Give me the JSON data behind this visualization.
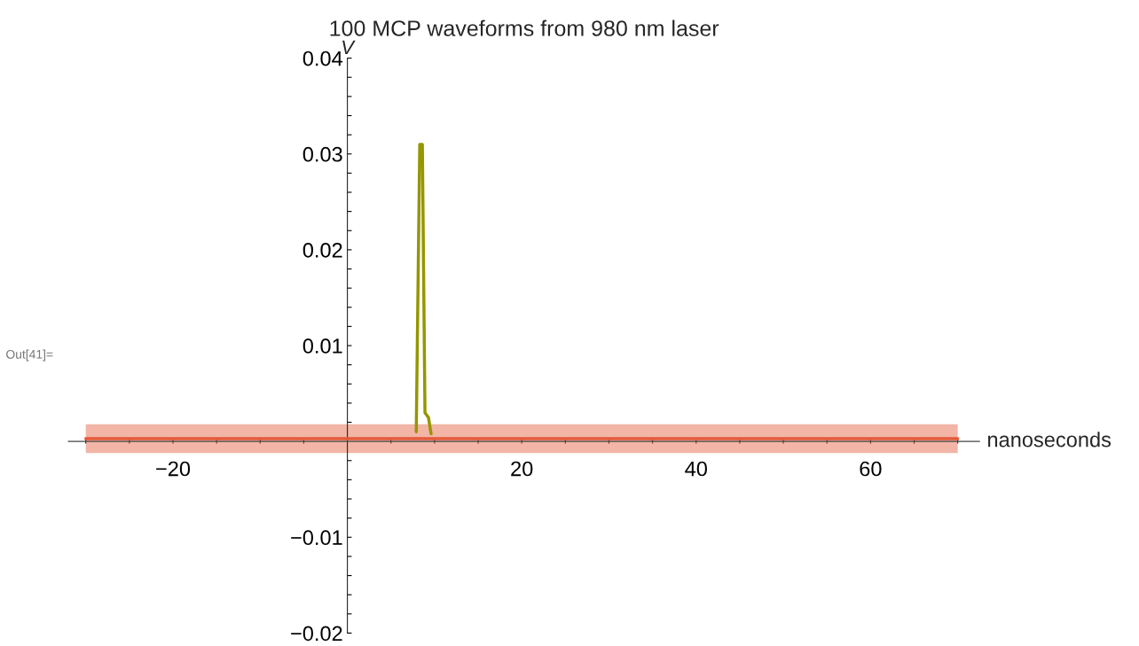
{
  "chart_data": {
    "type": "line",
    "title": "100 MCP waveforms from 980 nm laser",
    "xlabel": "nanoseconds",
    "ylabel": "V",
    "annotations": [
      "Out[41]="
    ],
    "xlim": [
      -32,
      72.5
    ],
    "ylim": [
      -0.02,
      0.04
    ],
    "xticks": [
      {
        "value": -30,
        "label": null
      },
      {
        "value": -25,
        "label": null
      },
      {
        "value": -20,
        "label": "−20"
      },
      {
        "value": -15,
        "label": null
      },
      {
        "value": -10,
        "label": null
      },
      {
        "value": -5,
        "label": null
      },
      {
        "value": 5,
        "label": null
      },
      {
        "value": 10,
        "label": null
      },
      {
        "value": 15,
        "label": null
      },
      {
        "value": 20,
        "label": "20"
      },
      {
        "value": 25,
        "label": null
      },
      {
        "value": 30,
        "label": null
      },
      {
        "value": 35,
        "label": null
      },
      {
        "value": 40,
        "label": "40"
      },
      {
        "value": 45,
        "label": null
      },
      {
        "value": 50,
        "label": null
      },
      {
        "value": 55,
        "label": null
      },
      {
        "value": 60,
        "label": "60"
      },
      {
        "value": 65,
        "label": null
      },
      {
        "value": 70,
        "label": null
      }
    ],
    "yticks": [
      {
        "value": -0.02,
        "label": "−0.02"
      },
      {
        "value": -0.018,
        "label": null
      },
      {
        "value": -0.016,
        "label": null
      },
      {
        "value": -0.014,
        "label": null
      },
      {
        "value": -0.012,
        "label": null
      },
      {
        "value": -0.01,
        "label": "−0.01"
      },
      {
        "value": -0.008,
        "label": null
      },
      {
        "value": -0.006,
        "label": null
      },
      {
        "value": -0.004,
        "label": null
      },
      {
        "value": -0.002,
        "label": null
      },
      {
        "value": 0.002,
        "label": null
      },
      {
        "value": 0.004,
        "label": null
      },
      {
        "value": 0.006,
        "label": null
      },
      {
        "value": 0.008,
        "label": null
      },
      {
        "value": 0.01,
        "label": "0.01"
      },
      {
        "value": 0.012,
        "label": null
      },
      {
        "value": 0.014,
        "label": null
      },
      {
        "value": 0.016,
        "label": null
      },
      {
        "value": 0.018,
        "label": null
      },
      {
        "value": 0.02,
        "label": "0.02"
      },
      {
        "value": 0.022,
        "label": null
      },
      {
        "value": 0.024,
        "label": null
      },
      {
        "value": 0.026,
        "label": null
      },
      {
        "value": 0.028,
        "label": null
      },
      {
        "value": 0.03,
        "label": "0.03"
      },
      {
        "value": 0.032,
        "label": null
      },
      {
        "value": 0.034,
        "label": null
      },
      {
        "value": 0.036,
        "label": null
      },
      {
        "value": 0.038,
        "label": null
      },
      {
        "value": 0.04,
        "label": "0.04"
      }
    ],
    "grid": false,
    "legend": false,
    "series": [
      {
        "color": "#e35b3a",
        "x": [
          -30,
          70
        ],
        "values": [
          0.0003,
          0.0003
        ],
        "lower": [
          -0.0012,
          -0.0012
        ],
        "upper": [
          0.0018,
          0.0018
        ]
      },
      {
        "color": "#969600",
        "x": [
          7.9,
          8.3,
          8.6,
          8.9,
          9.3,
          9.6
        ],
        "values": [
          0.001,
          0.031,
          0.031,
          0.003,
          0.0025,
          0.0008
        ]
      }
    ]
  }
}
